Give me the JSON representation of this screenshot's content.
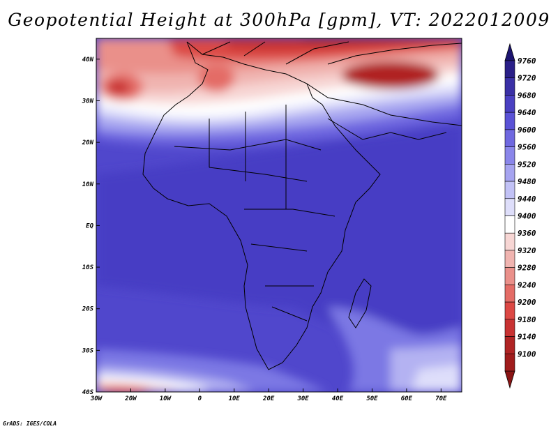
{
  "title": "Geopotential Height at 300hPa [gpm], VT: 2022012009",
  "footer": "GrADS: IGES/COLA",
  "axes": {
    "x_ticks": [
      {
        "value": -30,
        "label": "30W"
      },
      {
        "value": -20,
        "label": "20W"
      },
      {
        "value": -10,
        "label": "10W"
      },
      {
        "value": 0,
        "label": "0"
      },
      {
        "value": 10,
        "label": "10E"
      },
      {
        "value": 20,
        "label": "20E"
      },
      {
        "value": 30,
        "label": "30E"
      },
      {
        "value": 40,
        "label": "40E"
      },
      {
        "value": 50,
        "label": "50E"
      },
      {
        "value": 60,
        "label": "60E"
      },
      {
        "value": 70,
        "label": "70E"
      }
    ],
    "y_ticks": [
      {
        "value": 40,
        "label": "40N"
      },
      {
        "value": 30,
        "label": "30N"
      },
      {
        "value": 20,
        "label": "20N"
      },
      {
        "value": 10,
        "label": "10N"
      },
      {
        "value": 0,
        "label": "EQ"
      },
      {
        "value": -10,
        "label": "10S"
      },
      {
        "value": -20,
        "label": "20S"
      },
      {
        "value": -30,
        "label": "30S"
      },
      {
        "value": -40,
        "label": "40S"
      }
    ],
    "lon_range": [
      -30,
      76
    ],
    "lat_range": [
      -40,
      45
    ]
  },
  "colorbar": {
    "levels": [
      {
        "label": "9760",
        "color": "#2a1f88"
      },
      {
        "label": "9720",
        "color": "#3a30a6"
      },
      {
        "label": "9680",
        "color": "#4a40c2"
      },
      {
        "label": "9640",
        "color": "#5a52d6"
      },
      {
        "label": "9600",
        "color": "#6f68e0"
      },
      {
        "label": "9560",
        "color": "#8a86ea"
      },
      {
        "label": "9520",
        "color": "#a6a4f0"
      },
      {
        "label": "9480",
        "color": "#c2c2f6"
      },
      {
        "label": "9440",
        "color": "#dedefa"
      },
      {
        "label": "9400",
        "color": "#ffffff"
      },
      {
        "label": "9360",
        "color": "#f7d6d4"
      },
      {
        "label": "9320",
        "color": "#f0b4b0"
      },
      {
        "label": "9280",
        "color": "#ea908a"
      },
      {
        "label": "9240",
        "color": "#e46c66"
      },
      {
        "label": "9200",
        "color": "#dc4844"
      },
      {
        "label": "9180",
        "color": "#c83232"
      },
      {
        "label": "9140",
        "color": "#b02424"
      },
      {
        "label": "9100",
        "color": "#a01c1c"
      }
    ],
    "top_arrow_color": "#1c1470",
    "bottom_arrow_color": "#8a1414"
  }
}
